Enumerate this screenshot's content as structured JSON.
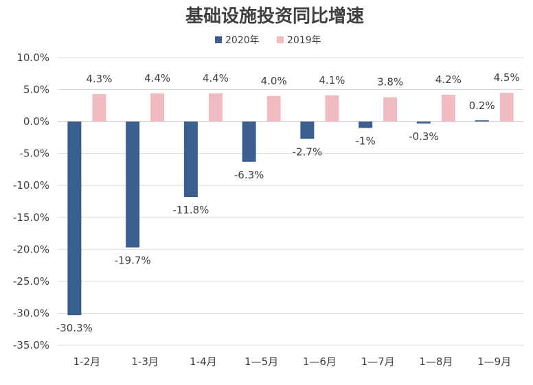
{
  "chart_data": {
    "type": "bar",
    "title": "基础设施投资同比增速",
    "categories": [
      "1-2月",
      "1-3月",
      "1-4月",
      "1—5月",
      "1—6月",
      "1—7月",
      "1—8月",
      "1—9月"
    ],
    "series": [
      {
        "name": "2020年",
        "color": "#3a5f8f",
        "values": [
          -30.3,
          -19.7,
          -11.8,
          -6.3,
          -2.7,
          -1,
          -0.3,
          0.2
        ],
        "labels": [
          "-30.3%",
          "-19.7%",
          "-11.8%",
          "-6.3%",
          "-2.7%",
          "-1%",
          "-0.3%",
          "0.2%"
        ]
      },
      {
        "name": "2019年",
        "color": "#f0bcc2",
        "values": [
          4.3,
          4.4,
          4.4,
          4.0,
          4.1,
          3.8,
          4.2,
          4.5
        ],
        "labels": [
          "4.3%",
          "4.4%",
          "4.4%",
          "4.0%",
          "4.1%",
          "3.8%",
          "4.2%",
          "4.5%"
        ]
      }
    ],
    "ylim": [
      -35,
      10
    ],
    "yticks": [
      10,
      5,
      0,
      -5,
      -10,
      -15,
      -20,
      -25,
      -30,
      -35
    ],
    "ytick_labels": [
      "10.0%",
      "5.0%",
      "0.0%",
      "-5.0%",
      "-10.0%",
      "-15.0%",
      "-20.0%",
      "-25.0%",
      "-30.0%",
      "-35.0%"
    ],
    "grid": true,
    "legend_position": "top-center"
  }
}
